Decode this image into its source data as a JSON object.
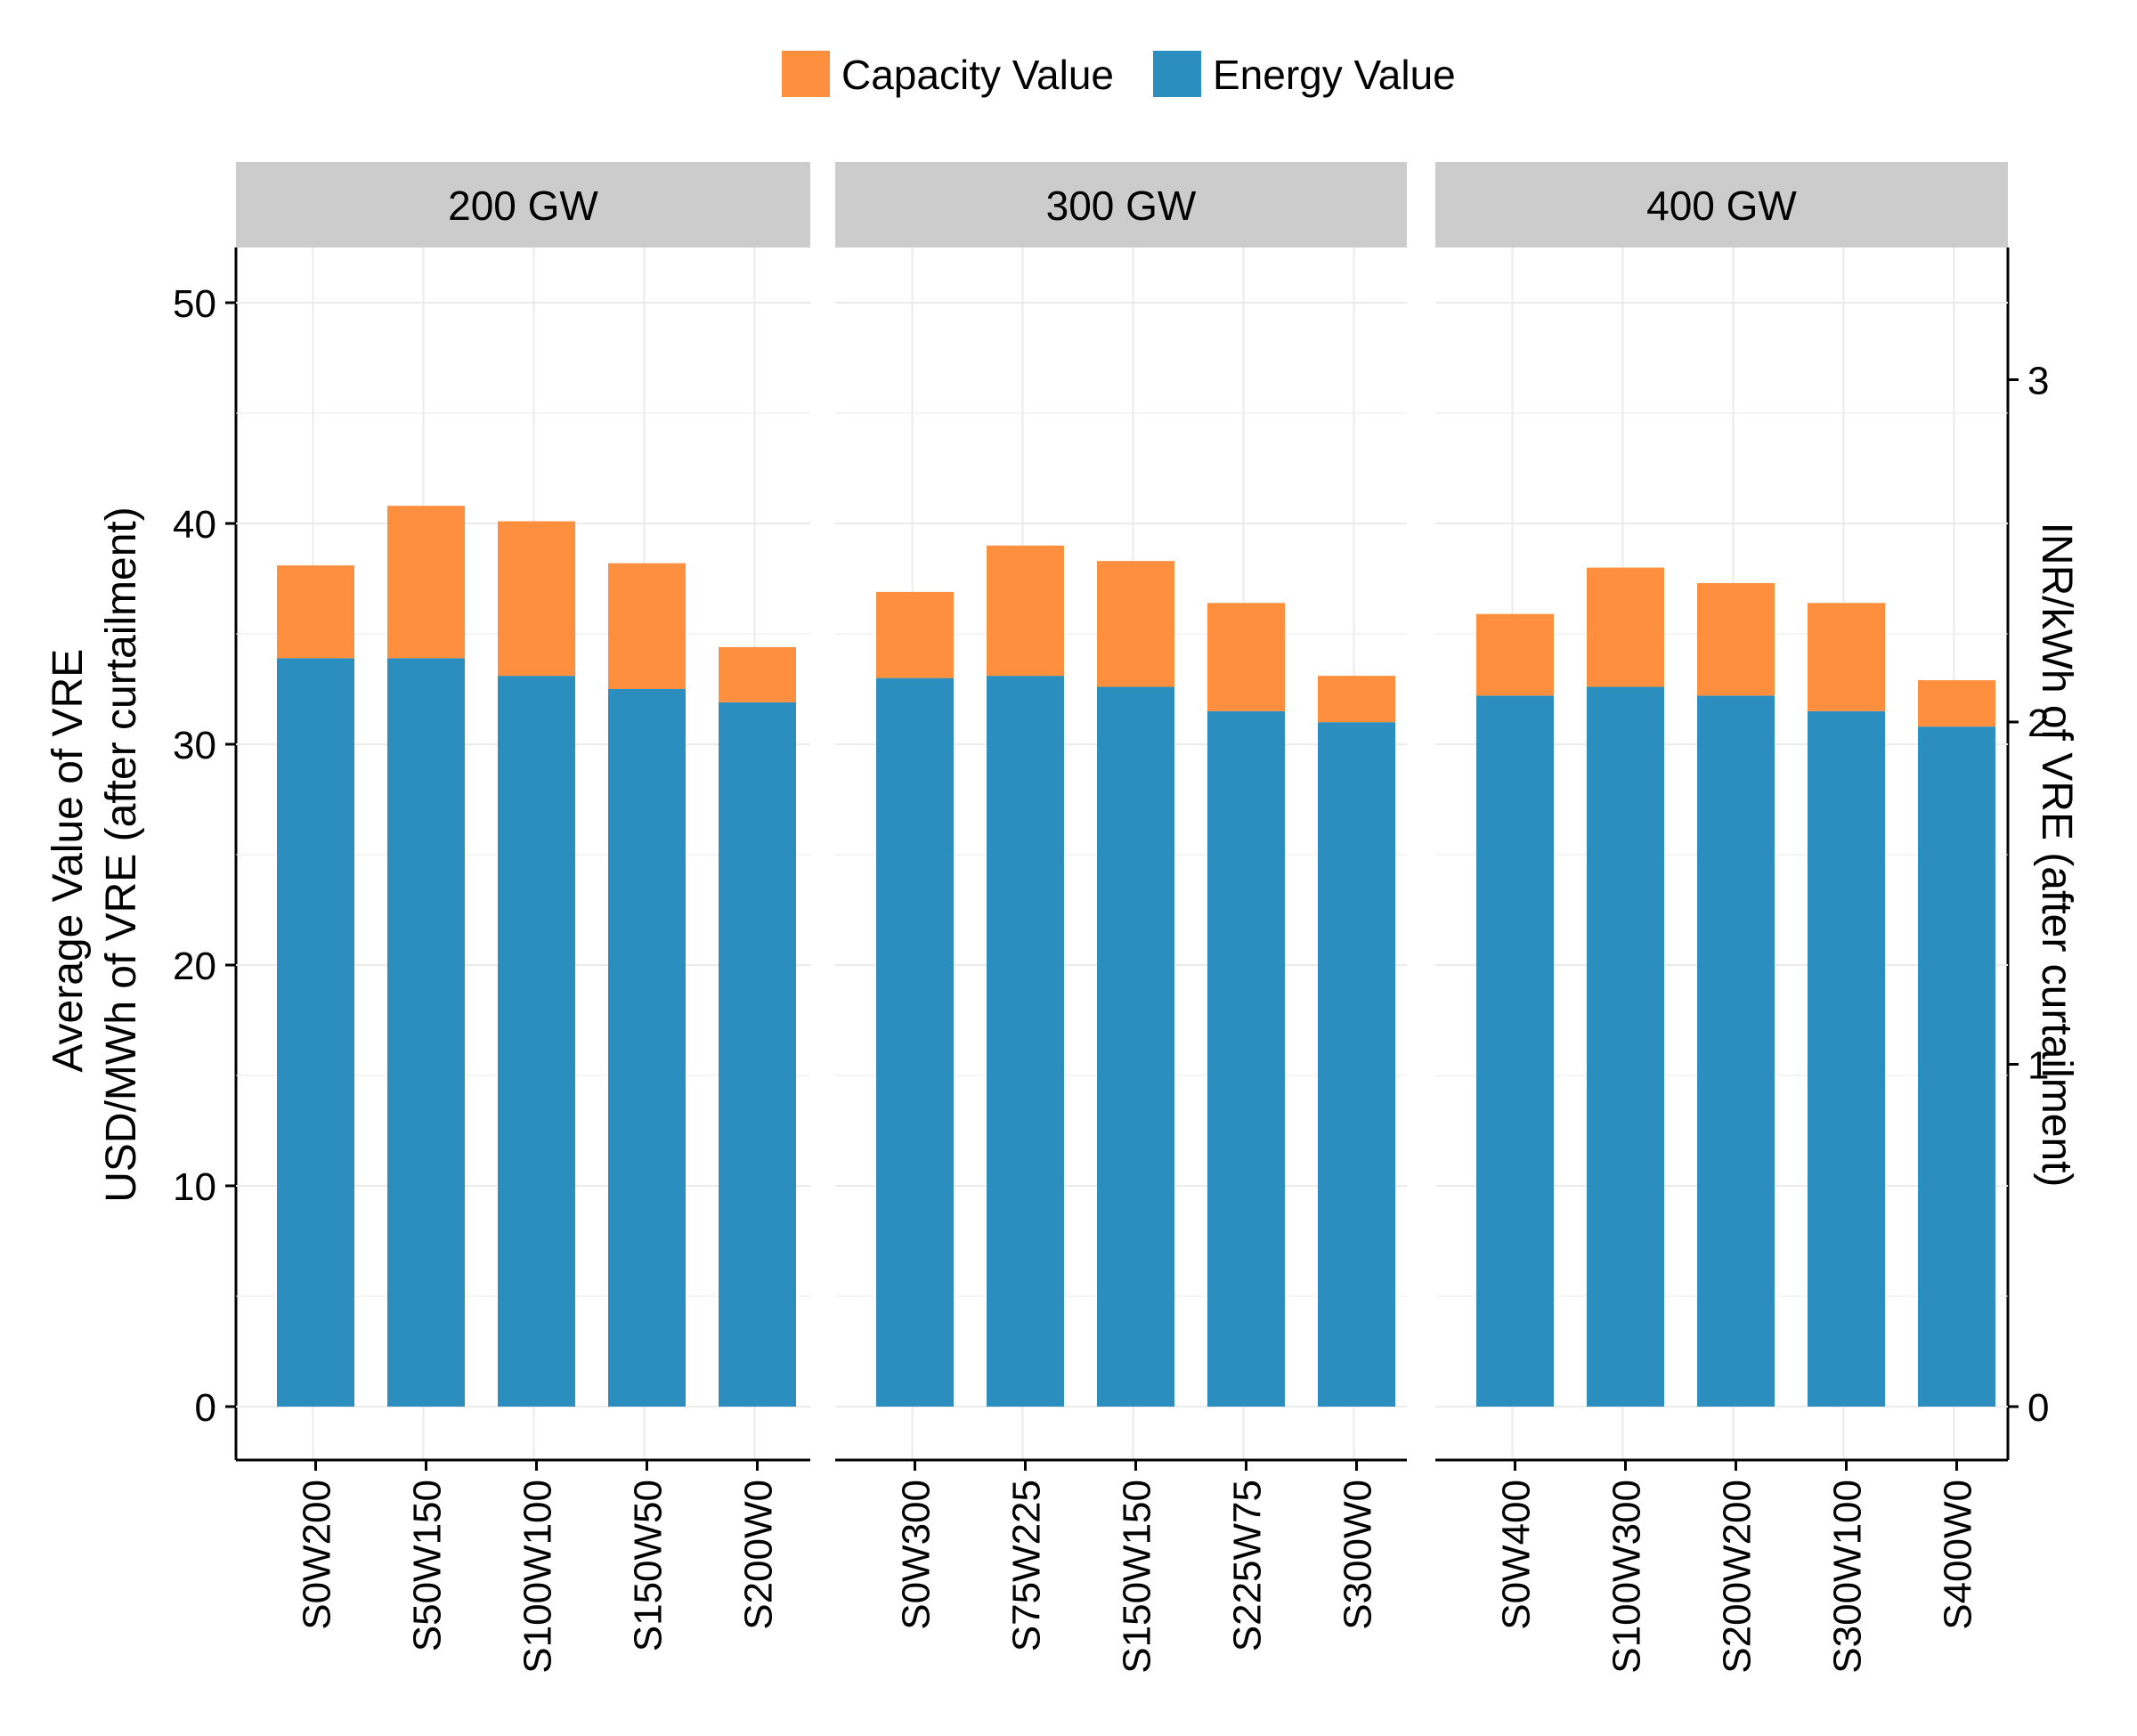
{
  "legend": [
    {
      "label": "Capacity Value",
      "color": "#FD8F3F"
    },
    {
      "label": "Energy Value",
      "color": "#2C8EBF"
    }
  ],
  "axes": {
    "left_label_line1": "Average Value of VRE",
    "left_label_line2": "USD/MWh of VRE (after curtailment)",
    "right_label": "INR/kWh of VRE (after curtailment)",
    "left_ticks": [
      "0",
      "10",
      "20",
      "30",
      "40",
      "50"
    ],
    "right_ticks": [
      "0",
      "1",
      "2",
      "3"
    ]
  },
  "chart_data": {
    "type": "bar",
    "stacked": true,
    "ylabel": "Average Value of VRE USD/MWh of VRE (after curtailment)",
    "y2label": "INR/kWh of VRE (after curtailment)",
    "ylim": [
      0,
      50
    ],
    "y2_ticks": [
      0,
      1,
      2,
      3
    ],
    "y2_per_y": 0.0645,
    "legend_position": "top",
    "grid": true,
    "panels": [
      {
        "title": "200 GW",
        "categories": [
          "S0W200",
          "S50W150",
          "S100W100",
          "S150W50",
          "S200W0"
        ],
        "series": [
          {
            "name": "Energy Value",
            "values": [
              33.9,
              33.9,
              33.1,
              32.5,
              31.9
            ]
          },
          {
            "name": "Capacity Value",
            "values": [
              4.2,
              6.9,
              7.0,
              5.7,
              2.5
            ]
          }
        ]
      },
      {
        "title": "300 GW",
        "categories": [
          "S0W300",
          "S75W225",
          "S150W150",
          "S225W75",
          "S300W0"
        ],
        "series": [
          {
            "name": "Energy Value",
            "values": [
              33.0,
              33.1,
              32.6,
              31.5,
              31.0
            ]
          },
          {
            "name": "Capacity Value",
            "values": [
              3.9,
              5.9,
              5.7,
              4.9,
              2.1
            ]
          }
        ]
      },
      {
        "title": "400 GW",
        "categories": [
          "S0W400",
          "S100W300",
          "S200W200",
          "S300W100",
          "S400W0"
        ],
        "series": [
          {
            "name": "Energy Value",
            "values": [
              32.2,
              32.6,
              32.2,
              31.5,
              30.8
            ]
          },
          {
            "name": "Capacity Value",
            "values": [
              3.7,
              5.4,
              5.1,
              4.9,
              2.1
            ]
          }
        ]
      }
    ]
  }
}
